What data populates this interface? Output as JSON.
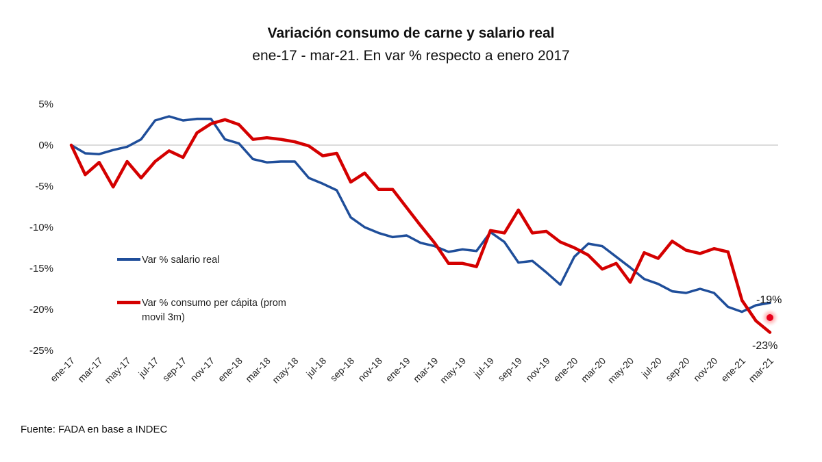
{
  "chart_data": {
    "type": "line",
    "title": "Variación consumo de carne y salario real",
    "subtitle": "ene-17 - mar-21. En var % respecto a enero 2017",
    "xlabel": "",
    "ylabel": "",
    "ylim": [
      -25,
      5
    ],
    "yticks": [
      5,
      0,
      -5,
      -10,
      -15,
      -20,
      -25
    ],
    "ytick_labels": [
      "5%",
      "0%",
      "-5%",
      "-10%",
      "-15%",
      "-20%",
      "-25%"
    ],
    "grid": "zero-line only",
    "x": [
      "ene-17",
      "feb-17",
      "mar-17",
      "abr-17",
      "may-17",
      "jun-17",
      "jul-17",
      "ago-17",
      "sep-17",
      "oct-17",
      "nov-17",
      "dic-17",
      "ene-18",
      "feb-18",
      "mar-18",
      "abr-18",
      "may-18",
      "jun-18",
      "jul-18",
      "ago-18",
      "sep-18",
      "oct-18",
      "nov-18",
      "dic-18",
      "ene-19",
      "feb-19",
      "mar-19",
      "abr-19",
      "may-19",
      "jun-19",
      "jul-19",
      "ago-19",
      "sep-19",
      "oct-19",
      "nov-19",
      "dic-19",
      "ene-20",
      "feb-20",
      "mar-20",
      "abr-20",
      "may-20",
      "jun-20",
      "jul-20",
      "ago-20",
      "sep-20",
      "oct-20",
      "nov-20",
      "dic-20",
      "ene-21",
      "feb-21",
      "mar-21"
    ],
    "xtick_labels": [
      "ene-17",
      "mar-17",
      "may-17",
      "jul-17",
      "sep-17",
      "nov-17",
      "ene-18",
      "mar-18",
      "may-18",
      "jul-18",
      "sep-18",
      "nov-18",
      "ene-19",
      "mar-19",
      "may-19",
      "jul-19",
      "sep-19",
      "nov-19",
      "ene-20",
      "mar-20",
      "may-20",
      "jul-20",
      "sep-20",
      "nov-20",
      "ene-21",
      "mar-21"
    ],
    "series": [
      {
        "name": "Var % salario real",
        "color": "#1f4e9a",
        "values": [
          0,
          -1.0,
          -1.1,
          -0.6,
          -0.2,
          0.7,
          3.0,
          3.5,
          3.0,
          3.2,
          3.2,
          0.7,
          0.2,
          -1.7,
          -2.1,
          -2.0,
          -2.0,
          -4.0,
          -4.7,
          -5.5,
          -8.8,
          -10.0,
          -10.7,
          -11.2,
          -11.0,
          -11.9,
          -12.3,
          -13.0,
          -12.7,
          -12.9,
          -10.6,
          -11.8,
          -14.3,
          -14.1,
          -15.5,
          -17.0,
          -13.6,
          -12.0,
          -12.3,
          -13.6,
          -14.9,
          -16.3,
          -16.9,
          -17.8,
          -18.0,
          -17.5,
          -18.0,
          -19.7,
          -20.3,
          -19.5,
          -19.2
        ]
      },
      {
        "name": "Var % consumo per cápita (prom movil 3m)",
        "color": "#d40000",
        "values": [
          0,
          -3.6,
          -2.1,
          -5.1,
          -2.0,
          -4.0,
          -2.0,
          -0.7,
          -1.5,
          1.5,
          2.6,
          3.1,
          2.5,
          0.7,
          0.9,
          0.7,
          0.4,
          -0.1,
          -1.3,
          -1.0,
          -4.5,
          -3.4,
          -5.4,
          -5.4,
          -7.6,
          -9.8,
          -11.9,
          -14.4,
          -14.4,
          -14.8,
          -10.4,
          -10.7,
          -7.9,
          -10.7,
          -10.5,
          -11.8,
          -12.5,
          -13.4,
          -15.1,
          -14.4,
          -16.7,
          -13.1,
          -13.8,
          -11.7,
          -12.8,
          -13.2,
          -12.6,
          -13.0,
          -18.9,
          -21.4,
          -22.8
        ]
      }
    ],
    "legend": {
      "placement": "center-left inside plot",
      "entries": [
        {
          "label_line1": "Var % salario real",
          "label_line2": "",
          "color": "#1f4e9a"
        },
        {
          "label_line1": "Var % consumo per cápita (prom",
          "label_line2": "movil 3m)",
          "color": "#d40000"
        }
      ]
    },
    "annotations": [
      {
        "text": "-19%",
        "series": "Var % salario real",
        "x": "mar-21",
        "y": -19
      },
      {
        "text": "-23%",
        "series": "Var % consumo per cápita (prom movil 3m)",
        "x": "mar-21",
        "y": -23
      }
    ],
    "marker": {
      "x": "mar-21",
      "y": -21,
      "color": "#e8001c",
      "description": "glowing red dot"
    },
    "source": "Fuente: FADA en base a INDEC"
  }
}
